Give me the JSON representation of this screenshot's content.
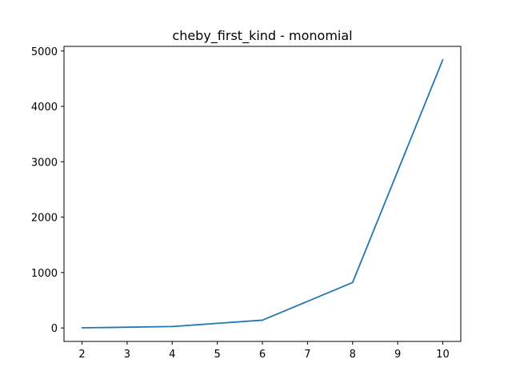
{
  "chart_data": {
    "type": "line",
    "title": "cheby_first_kind - monomial",
    "xlabel": "",
    "ylabel": "",
    "x_ticks": [
      "2",
      "3",
      "4",
      "5",
      "6",
      "7",
      "8",
      "9",
      "10"
    ],
    "y_ticks": [
      "0",
      "1000",
      "2000",
      "3000",
      "4000",
      "5000"
    ],
    "xlim": [
      1.6,
      10.4
    ],
    "ylim": [
      -243,
      5083
    ],
    "grid": false,
    "series": [
      {
        "color": "#1f77b4",
        "points": [
          {
            "x": 2,
            "y": 2
          },
          {
            "x": 4,
            "y": 26
          },
          {
            "x": 6,
            "y": 140
          },
          {
            "x": 8,
            "y": 820
          },
          {
            "x": 10,
            "y": 4840
          }
        ]
      }
    ]
  }
}
